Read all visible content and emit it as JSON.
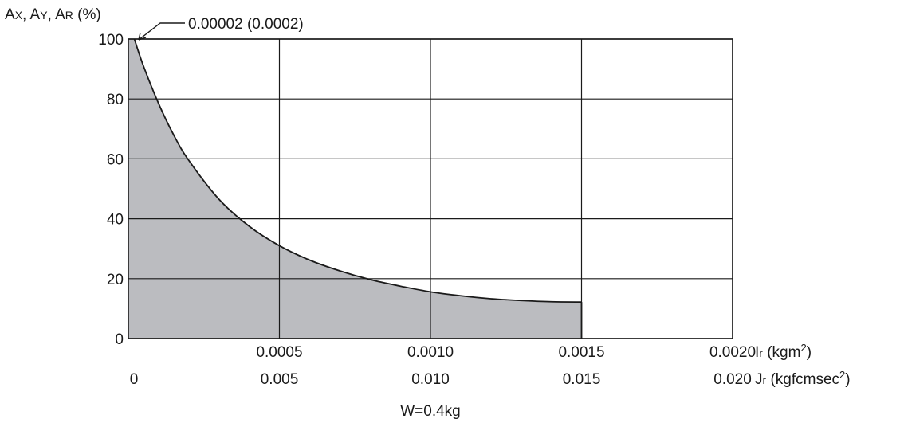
{
  "chart_data": {
    "type": "area",
    "ylabel_parts": {
      "a1": "A",
      "s1": "X",
      "sep1": ", ",
      "a2": "A",
      "s2": "Y",
      "sep2": ", ",
      "a3": "A",
      "s3": "R",
      "unit": " (%)"
    },
    "annotation": "0.00002 (0.0002)",
    "footer": "W=0.4kg",
    "x_axis_primary": {
      "label_base": "I",
      "label_sub": "r",
      "label_unit": " (kgm",
      "label_sup": "2",
      "label_end": ")",
      "ticks": [
        {
          "value": 0.0005,
          "label": "0.0005"
        },
        {
          "value": 0.001,
          "label": "0.0010"
        },
        {
          "value": 0.0015,
          "label": "0.0015"
        },
        {
          "value": 0.002,
          "label": "0.0020"
        }
      ]
    },
    "x_axis_secondary": {
      "label_base": "J",
      "label_sub": "r",
      "label_unit": " (kgfcmsec",
      "label_sup": "2",
      "label_end": ")",
      "ticks": [
        {
          "value": 0,
          "label": "0"
        },
        {
          "value": 0.0005,
          "label": "0.005"
        },
        {
          "value": 0.001,
          "label": "0.010"
        },
        {
          "value": 0.0015,
          "label": "0.015"
        },
        {
          "value": 0.002,
          "label": "0.020"
        }
      ]
    },
    "y_ticks": [
      {
        "value": 0,
        "label": "0"
      },
      {
        "value": 20,
        "label": "20"
      },
      {
        "value": 40,
        "label": "40"
      },
      {
        "value": 60,
        "label": "60"
      },
      {
        "value": 80,
        "label": "80"
      },
      {
        "value": 100,
        "label": "100"
      }
    ],
    "xlim": [
      0,
      0.002
    ],
    "ylim": [
      0,
      100
    ],
    "grid": true,
    "fill_color": "#bbbcc0",
    "line_color": "#1a1a1a",
    "series": [
      {
        "x": [
          2e-05,
          5e-05,
          0.0001,
          0.00015,
          0.0002,
          0.0003,
          0.0004,
          0.0005,
          0.0006,
          0.0007,
          0.0008,
          0.0009,
          0.001,
          0.0011,
          0.0012,
          0.0013,
          0.0014,
          0.0015
        ],
        "y": [
          100,
          91,
          78.5,
          68,
          59.5,
          46.5,
          37.5,
          31,
          26.2,
          22.6,
          19.7,
          17.5,
          15.6,
          14.3,
          13.3,
          12.7,
          12.3,
          12.2
        ]
      }
    ]
  }
}
